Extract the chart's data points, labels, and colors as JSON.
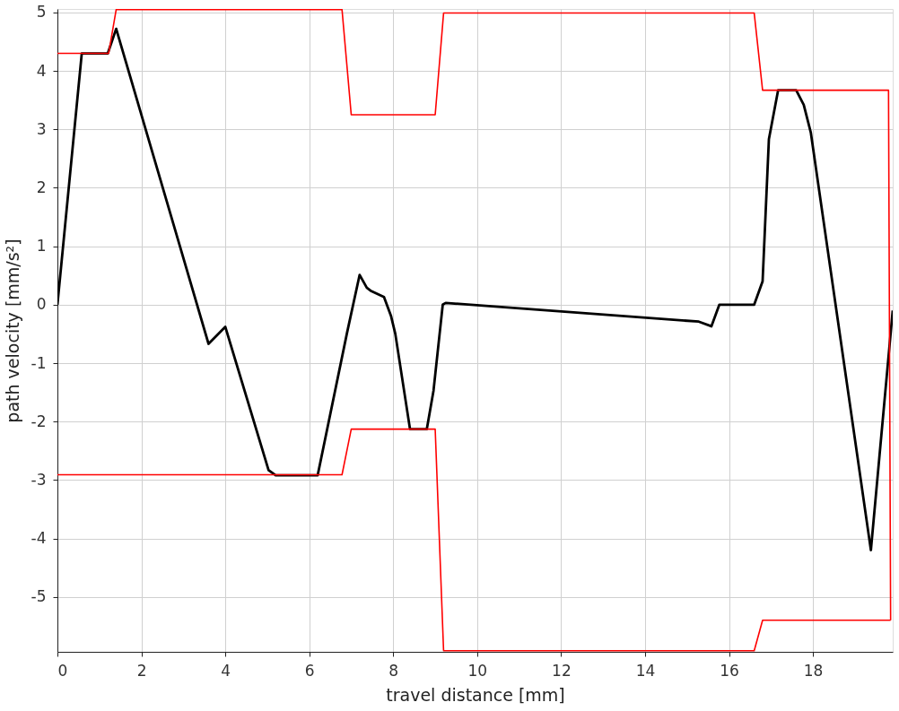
{
  "chart_data": {
    "type": "line",
    "xlabel": "travel distance [mm]",
    "ylabel": "path velocity [mm/s²]",
    "xlim": [
      0,
      19.9
    ],
    "ylim": [
      -5.94,
      5.06
    ],
    "xticks": [
      0,
      2,
      4,
      6,
      8,
      10,
      12,
      14,
      16,
      18
    ],
    "yticks": [
      -5,
      -4,
      -3,
      -2,
      -1,
      0,
      1,
      2,
      3,
      4,
      5
    ],
    "grid": true,
    "marker": "none",
    "line_style": "solid",
    "series": [
      {
        "color": "#000000",
        "x": [
          0,
          0.58,
          1.2,
          1.4,
          3.6,
          4.0,
          5.03,
          5.2,
          6.2,
          6.9,
          7.2,
          7.37,
          7.46,
          7.78,
          7.95,
          8.05,
          8.4,
          8.8,
          8.96,
          9.18,
          9.25,
          15.28,
          15.58,
          15.77,
          16.6,
          16.8,
          16.95,
          17.17,
          17.6,
          17.78,
          17.95,
          19.38,
          19.9
        ],
        "values": [
          0,
          4.3,
          4.3,
          4.72,
          -0.67,
          -0.38,
          -2.83,
          -2.92,
          -2.92,
          -0.48,
          0.51,
          0.29,
          0.24,
          0.13,
          -0.2,
          -0.5,
          -2.13,
          -2.13,
          -1.47,
          0,
          0.03,
          -0.29,
          -0.37,
          0,
          0,
          0.4,
          2.83,
          3.67,
          3.67,
          3.42,
          2.94,
          -4.2,
          -0.1
        ]
      },
      {
        "color": "#ff0000",
        "x": [
          0,
          1.22,
          1.4,
          6.78,
          7.0,
          9.0,
          9.2,
          16.6,
          16.8,
          19.8,
          19.85
        ],
        "values": [
          4.3,
          4.3,
          5.05,
          5.05,
          3.25,
          3.25,
          4.99,
          4.99,
          3.67,
          3.67,
          -5.4
        ]
      },
      {
        "color": "#ff0000",
        "x": [
          0,
          6.78,
          7.0,
          9.0,
          9.2,
          16.6,
          16.8,
          19.85
        ],
        "values": [
          -2.91,
          -2.91,
          -2.13,
          -2.13,
          -5.92,
          -5.92,
          -5.4,
          -5.4
        ]
      }
    ]
  }
}
